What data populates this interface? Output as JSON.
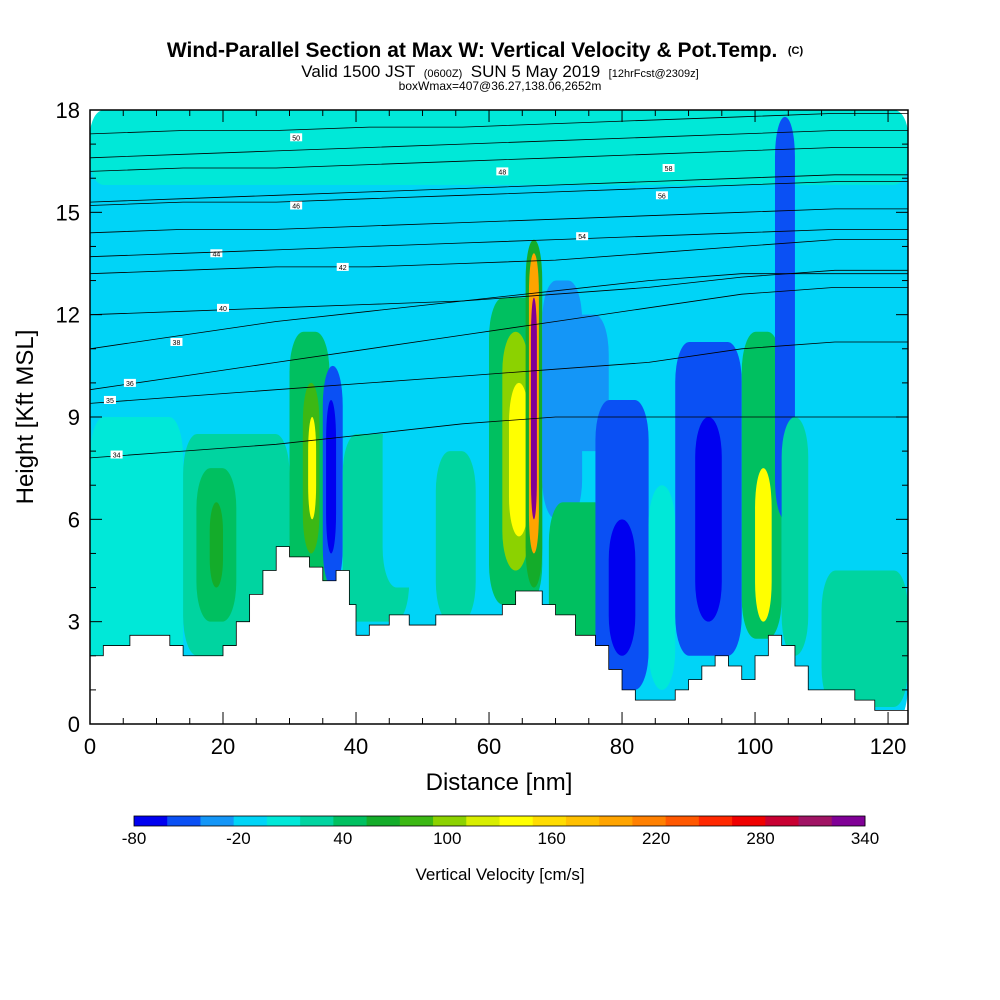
{
  "chart_data": {
    "type": "heatmap",
    "title": "Wind-Parallel Section at Max W: Vertical Velocity & Pot.Temp.",
    "title_mark": "(C)",
    "subtitle": {
      "lead": "Valid 1500 JST",
      "utc": "(0600Z)",
      "date": "SUN 5 May 2019",
      "fcst": "[12hrFcst@2309z]"
    },
    "box_info": "boxWmax=407@36.27,138.06,2652m",
    "xlabel": "Distance [nm]",
    "ylabel": "Height [Kft MSL]",
    "xlim": [
      0,
      123
    ],
    "ylim": [
      0,
      18
    ],
    "xticks": [
      0,
      20,
      40,
      60,
      80,
      100,
      120
    ],
    "yticks": [
      0,
      3,
      6,
      9,
      12,
      15,
      18
    ],
    "colorbar": {
      "label": "Vertical Velocity [cm/s]",
      "tick_labels": [
        "-80",
        "-20",
        "40",
        "100",
        "160",
        "220",
        "280",
        "340"
      ],
      "tick_values": [
        -80,
        -20,
        40,
        100,
        160,
        220,
        280,
        340
      ],
      "colors": [
        "#0000f0",
        "#0a50f4",
        "#1496f7",
        "#00d4f7",
        "#00e8d8",
        "#00d4a0",
        "#00c060",
        "#14ac2a",
        "#3cb814",
        "#8cd200",
        "#d8ee00",
        "#ffff00",
        "#ffdc00",
        "#ffc000",
        "#ffa400",
        "#ff8000",
        "#ff5800",
        "#ff2800",
        "#f00000",
        "#c80032",
        "#a01464",
        "#800096"
      ]
    },
    "cells": [
      {
        "x0": 0,
        "x1": 123,
        "y0": 0,
        "y1": 18,
        "w": -5
      },
      {
        "x0": 0,
        "x1": 123,
        "y0": 15.8,
        "y1": 18,
        "w": 10
      },
      {
        "x0": 0,
        "x1": 14,
        "y0": 0,
        "y1": 9,
        "w": 15
      },
      {
        "x0": 14,
        "x1": 30,
        "y0": 2,
        "y1": 8.5,
        "w": 30
      },
      {
        "x0": 16,
        "x1": 22,
        "y0": 3,
        "y1": 7.5,
        "w": 50
      },
      {
        "x0": 18,
        "x1": 20,
        "y0": 4,
        "y1": 6.5,
        "w": 60
      },
      {
        "x0": 30,
        "x1": 36,
        "y0": 3.5,
        "y1": 11.5,
        "w": 45
      },
      {
        "x0": 32,
        "x1": 34.5,
        "y0": 5,
        "y1": 10,
        "w": 80
      },
      {
        "x0": 32.8,
        "x1": 34,
        "y0": 6,
        "y1": 9,
        "w": 140
      },
      {
        "x0": 35,
        "x1": 38,
        "y0": 4,
        "y1": 10.5,
        "w": -45
      },
      {
        "x0": 35.5,
        "x1": 37,
        "y0": 5,
        "y1": 9.5,
        "w": -75
      },
      {
        "x0": 38,
        "x1": 48,
        "y0": 3,
        "y1": 8.5,
        "w": 30
      },
      {
        "x0": 44,
        "x1": 50,
        "y0": 4,
        "y1": 9.5,
        "w": -15
      },
      {
        "x0": 52,
        "x1": 58,
        "y0": 3,
        "y1": 8,
        "w": 20
      },
      {
        "x0": 60,
        "x1": 68,
        "y0": 3.5,
        "y1": 12.5,
        "w": 45
      },
      {
        "x0": 62,
        "x1": 66,
        "y0": 4.5,
        "y1": 11.5,
        "w": 100
      },
      {
        "x0": 63,
        "x1": 66,
        "y0": 5.5,
        "y1": 10,
        "w": 145
      },
      {
        "x0": 65.5,
        "x1": 68,
        "y0": 4,
        "y1": 14.2,
        "w": 70
      },
      {
        "x0": 66,
        "x1": 67.5,
        "y0": 5,
        "y1": 13.8,
        "w": 200
      },
      {
        "x0": 66.3,
        "x1": 67.2,
        "y0": 6,
        "y1": 12.5,
        "w": 340
      },
      {
        "x0": 68,
        "x1": 74,
        "y0": 6,
        "y1": 13,
        "w": -40
      },
      {
        "x0": 69,
        "x1": 78,
        "y0": 2,
        "y1": 6.5,
        "w": 35
      },
      {
        "x0": 72,
        "x1": 78,
        "y0": 8,
        "y1": 12,
        "w": -30
      },
      {
        "x0": 76,
        "x1": 84,
        "y0": 1,
        "y1": 9.5,
        "w": -50
      },
      {
        "x0": 78,
        "x1": 82,
        "y0": 2,
        "y1": 6,
        "w": -75
      },
      {
        "x0": 84,
        "x1": 88,
        "y0": 1,
        "y1": 7,
        "w": 15
      },
      {
        "x0": 88,
        "x1": 98,
        "y0": 2,
        "y1": 11.2,
        "w": -55
      },
      {
        "x0": 91,
        "x1": 95,
        "y0": 3,
        "y1": 9,
        "w": -75
      },
      {
        "x0": 98,
        "x1": 104,
        "y0": 2.5,
        "y1": 11.5,
        "w": 50
      },
      {
        "x0": 100,
        "x1": 102.5,
        "y0": 3,
        "y1": 7.5,
        "w": 140
      },
      {
        "x0": 103,
        "x1": 106,
        "y0": 6,
        "y1": 17.8,
        "w": -60
      },
      {
        "x0": 104,
        "x1": 108,
        "y0": 2,
        "y1": 9,
        "w": 20
      },
      {
        "x0": 110,
        "x1": 123,
        "y0": 0.5,
        "y1": 4.5,
        "w": 25
      }
    ],
    "terrain": [
      [
        0,
        2.0
      ],
      [
        2,
        2.3
      ],
      [
        6,
        2.6
      ],
      [
        12,
        2.3
      ],
      [
        14,
        2.0
      ],
      [
        20,
        2.3
      ],
      [
        22,
        3.0
      ],
      [
        24,
        3.8
      ],
      [
        26,
        4.5
      ],
      [
        28,
        5.2
      ],
      [
        30,
        4.9
      ],
      [
        33,
        4.6
      ],
      [
        35,
        4.2
      ],
      [
        37,
        4.5
      ],
      [
        39,
        3.5
      ],
      [
        40,
        2.6
      ],
      [
        42,
        2.9
      ],
      [
        45,
        3.2
      ],
      [
        48,
        2.9
      ],
      [
        52,
        3.2
      ],
      [
        58,
        3.2
      ],
      [
        62,
        3.5
      ],
      [
        64,
        3.9
      ],
      [
        66,
        3.9
      ],
      [
        68,
        3.5
      ],
      [
        70,
        3.2
      ],
      [
        73,
        2.6
      ],
      [
        76,
        2.3
      ],
      [
        78,
        1.6
      ],
      [
        80,
        1.0
      ],
      [
        82,
        0.7
      ],
      [
        86,
        0.7
      ],
      [
        88,
        1.0
      ],
      [
        90,
        1.3
      ],
      [
        92,
        1.7
      ],
      [
        94,
        2.0
      ],
      [
        96,
        1.7
      ],
      [
        98,
        1.3
      ],
      [
        100,
        2.0
      ],
      [
        102,
        2.6
      ],
      [
        104,
        2.3
      ],
      [
        106,
        1.7
      ],
      [
        108,
        1.0
      ],
      [
        112,
        1.0
      ],
      [
        115,
        0.7
      ],
      [
        118,
        0.4
      ],
      [
        123,
        0.4
      ]
    ],
    "isentropes": [
      {
        "y": [
          7.8,
          8.0,
          8.2,
          8.5,
          8.8,
          9.0,
          9.0,
          9.0,
          9.0,
          9.0
        ],
        "label": "34",
        "lx": 4,
        "ly": 7.9
      },
      {
        "y": [
          9.4,
          9.6,
          9.8,
          10.0,
          10.2,
          10.4,
          10.6,
          11.0,
          11.2,
          11.2
        ],
        "label": "35",
        "lx": 3,
        "ly": 9.5
      },
      {
        "y": [
          9.8,
          10.2,
          10.6,
          11.0,
          11.4,
          11.8,
          12.2,
          12.6,
          12.8,
          12.8
        ],
        "label": "36",
        "lx": 6,
        "ly": 10.0
      },
      {
        "y": [
          11.0,
          11.4,
          11.8,
          12.1,
          12.4,
          12.7,
          13.0,
          13.2,
          13.2,
          13.2
        ],
        "label": "38",
        "lx": 13,
        "ly": 11.2
      },
      {
        "y": [
          12.0,
          12.1,
          12.2,
          12.3,
          12.4,
          12.6,
          12.8,
          13.1,
          13.3,
          13.3
        ],
        "label": "40",
        "lx": 20,
        "ly": 12.2
      },
      {
        "y": [
          13.2,
          13.3,
          13.4,
          13.4,
          13.5,
          13.6,
          13.8,
          14.0,
          14.2,
          14.2
        ],
        "label": "42",
        "lx": 38,
        "ly": 13.4
      },
      {
        "y": [
          14.4,
          14.5,
          14.5,
          14.6,
          14.7,
          14.8,
          14.9,
          15.0,
          15.1,
          15.1
        ],
        "label": "44",
        "lx": 19,
        "ly": 13.8
      },
      {
        "y": [
          15.2,
          15.3,
          15.3,
          15.4,
          15.5,
          15.6,
          15.7,
          15.8,
          15.9,
          15.9
        ],
        "label": "46",
        "lx": 31,
        "ly": 15.2
      },
      {
        "y": [
          16.2,
          16.3,
          16.3,
          16.4,
          16.5,
          16.6,
          16.7,
          16.8,
          16.9,
          16.9
        ],
        "label": "48",
        "lx": 62,
        "ly": 16.2
      },
      {
        "y": [
          17.3,
          17.4,
          17.4,
          17.5,
          17.5,
          17.6,
          17.7,
          17.8,
          17.9,
          17.9
        ],
        "label": "50",
        "lx": 31,
        "ly": 17.2
      },
      {
        "y": [
          13.7,
          13.8,
          13.9,
          14.0,
          14.1,
          14.2,
          14.3,
          14.4,
          14.5,
          14.5
        ],
        "label": "54",
        "lx": 74,
        "ly": 14.3
      },
      {
        "y": [
          15.3,
          15.4,
          15.5,
          15.6,
          15.7,
          15.8,
          15.9,
          16.0,
          16.1,
          16.1
        ],
        "label": "56",
        "lx": 86,
        "ly": 15.5
      },
      {
        "y": [
          16.6,
          16.7,
          16.8,
          16.9,
          17.0,
          17.1,
          17.2,
          17.3,
          17.4,
          17.4
        ],
        "label": "58",
        "lx": 87,
        "ly": 16.3
      }
    ],
    "isentrope_x": [
      0,
      14,
      28,
      42,
      56,
      70,
      84,
      98,
      112,
      123
    ]
  }
}
